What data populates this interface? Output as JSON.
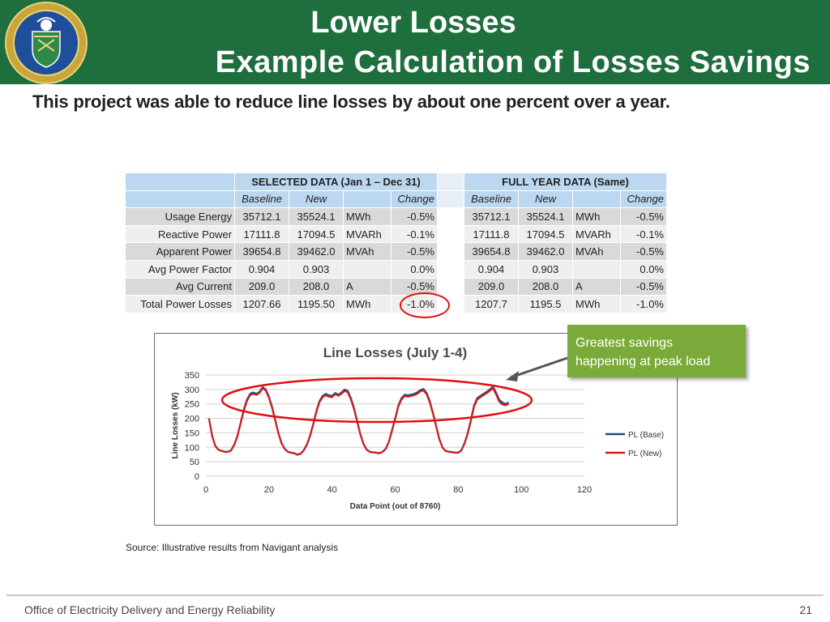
{
  "header": {
    "title_line1": "Lower Losses",
    "title_line2": "Example Calculation of Losses Savings",
    "seal_text": "DEPARTMENT OF ENERGY · UNITED STATES OF AMERICA"
  },
  "subtitle": "This project was able to reduce line losses by about one percent over a year.",
  "table": {
    "group1": "SELECTED DATA (Jan 1 – Dec 31)",
    "group2": "FULL YEAR DATA (Same)",
    "sub_headers": [
      "Baseline",
      "New",
      "",
      "Change"
    ],
    "rows": [
      {
        "label": "Usage Energy",
        "a": [
          "35712.1",
          "35524.1",
          "MWh",
          "-0.5%"
        ],
        "b": [
          "35712.1",
          "35524.1",
          "MWh",
          "-0.5%"
        ]
      },
      {
        "label": "Reactive Power",
        "a": [
          "17111.8",
          "17094.5",
          "MVARh",
          "-0.1%"
        ],
        "b": [
          "17111.8",
          "17094.5",
          "MVARh",
          "-0.1%"
        ]
      },
      {
        "label": "Apparent Power",
        "a": [
          "39654.8",
          "39462.0",
          "MVAh",
          "-0.5%"
        ],
        "b": [
          "39654.8",
          "39462.0",
          "MVAh",
          "-0.5%"
        ]
      },
      {
        "label": "Avg Power Factor",
        "a": [
          "0.904",
          "0.903",
          "",
          "0.0%"
        ],
        "b": [
          "0.904",
          "0.903",
          "",
          "0.0%"
        ]
      },
      {
        "label": "Avg Current",
        "a": [
          "209.0",
          "208.0",
          "A",
          "-0.5%"
        ],
        "b": [
          "209.0",
          "208.0",
          "A",
          "-0.5%"
        ]
      },
      {
        "label": "Total Power Losses",
        "a": [
          "1207.66",
          "1195.50",
          "MWh",
          "-1.0%"
        ],
        "b": [
          "1207.7",
          "1195.5",
          "MWh",
          "-1.0%"
        ]
      }
    ]
  },
  "chart_data": {
    "type": "line",
    "title": "Line Losses (July 1-4)",
    "xlabel": "Data Point (out of 8760)",
    "ylabel": "Line Losses (kW)",
    "xlim": [
      0,
      120
    ],
    "ylim": [
      0,
      350
    ],
    "xticks": [
      0,
      20,
      40,
      60,
      80,
      100,
      120
    ],
    "yticks": [
      0,
      50,
      100,
      150,
      200,
      250,
      300,
      350
    ],
    "legend_position": "right",
    "series": [
      {
        "name": "PL (Base)",
        "color": "#1f4e79",
        "x": [
          1,
          2,
          3,
          4,
          5,
          6,
          7,
          8,
          9,
          10,
          11,
          12,
          13,
          14,
          15,
          16,
          17,
          18,
          19,
          20,
          21,
          22,
          23,
          24,
          25,
          26,
          27,
          28,
          29,
          30,
          31,
          32,
          33,
          34,
          35,
          36,
          37,
          38,
          39,
          40,
          41,
          42,
          43,
          44,
          45,
          46,
          47,
          48,
          49,
          50,
          51,
          52,
          53,
          54,
          55,
          56,
          57,
          58,
          59,
          60,
          61,
          62,
          63,
          64,
          65,
          66,
          67,
          68,
          69,
          70,
          71,
          72,
          73,
          74,
          75,
          76,
          77,
          78,
          79,
          80,
          81,
          82,
          83,
          84,
          85,
          86,
          87,
          88,
          89,
          90,
          91,
          92,
          93,
          94,
          95,
          96
        ],
        "y": [
          200,
          140,
          105,
          92,
          88,
          85,
          85,
          90,
          110,
          140,
          185,
          230,
          265,
          285,
          290,
          285,
          292,
          308,
          300,
          275,
          240,
          195,
          150,
          115,
          95,
          85,
          82,
          80,
          75,
          78,
          90,
          110,
          140,
          180,
          225,
          260,
          278,
          285,
          280,
          278,
          288,
          282,
          290,
          300,
          295,
          270,
          235,
          190,
          145,
          112,
          92,
          85,
          83,
          82,
          80,
          85,
          95,
          120,
          160,
          200,
          245,
          270,
          282,
          280,
          282,
          285,
          290,
          298,
          302,
          288,
          260,
          220,
          175,
          130,
          100,
          88,
          85,
          84,
          82,
          82,
          90,
          115,
          150,
          195,
          245,
          270,
          278,
          285,
          292,
          300,
          310,
          290,
          265,
          255,
          250,
          255
        ]
      },
      {
        "name": "PL (New)",
        "color": "#cc1f1f",
        "x": [
          1,
          2,
          3,
          4,
          5,
          6,
          7,
          8,
          9,
          10,
          11,
          12,
          13,
          14,
          15,
          16,
          17,
          18,
          19,
          20,
          21,
          22,
          23,
          24,
          25,
          26,
          27,
          28,
          29,
          30,
          31,
          32,
          33,
          34,
          35,
          36,
          37,
          38,
          39,
          40,
          41,
          42,
          43,
          44,
          45,
          46,
          47,
          48,
          49,
          50,
          51,
          52,
          53,
          54,
          55,
          56,
          57,
          58,
          59,
          60,
          61,
          62,
          63,
          64,
          65,
          66,
          67,
          68,
          69,
          70,
          71,
          72,
          73,
          74,
          75,
          76,
          77,
          78,
          79,
          80,
          81,
          82,
          83,
          84,
          85,
          86,
          87,
          88,
          89,
          90,
          91,
          92,
          93,
          94,
          95,
          96
        ],
        "y": [
          198,
          138,
          104,
          91,
          87,
          84,
          84,
          89,
          108,
          138,
          182,
          226,
          260,
          280,
          285,
          281,
          288,
          304,
          296,
          271,
          236,
          192,
          148,
          113,
          94,
          84,
          81,
          79,
          74,
          77,
          89,
          108,
          138,
          177,
          221,
          256,
          273,
          280,
          275,
          273,
          284,
          278,
          285,
          295,
          290,
          265,
          231,
          187,
          143,
          110,
          91,
          84,
          82,
          81,
          79,
          84,
          94,
          118,
          157,
          197,
          241,
          265,
          277,
          275,
          277,
          280,
          285,
          293,
          297,
          283,
          255,
          216,
          172,
          128,
          99,
          87,
          84,
          83,
          81,
          81,
          89,
          113,
          147,
          191,
          240,
          265,
          273,
          280,
          287,
          295,
          305,
          283,
          258,
          248,
          245,
          250
        ]
      }
    ]
  },
  "callout": "Greatest savings happening at peak load",
  "source": "Source: Illustrative results from Navigant analysis",
  "footer": {
    "left": "Office of Electricity Delivery and Energy Reliability",
    "page": "21"
  }
}
